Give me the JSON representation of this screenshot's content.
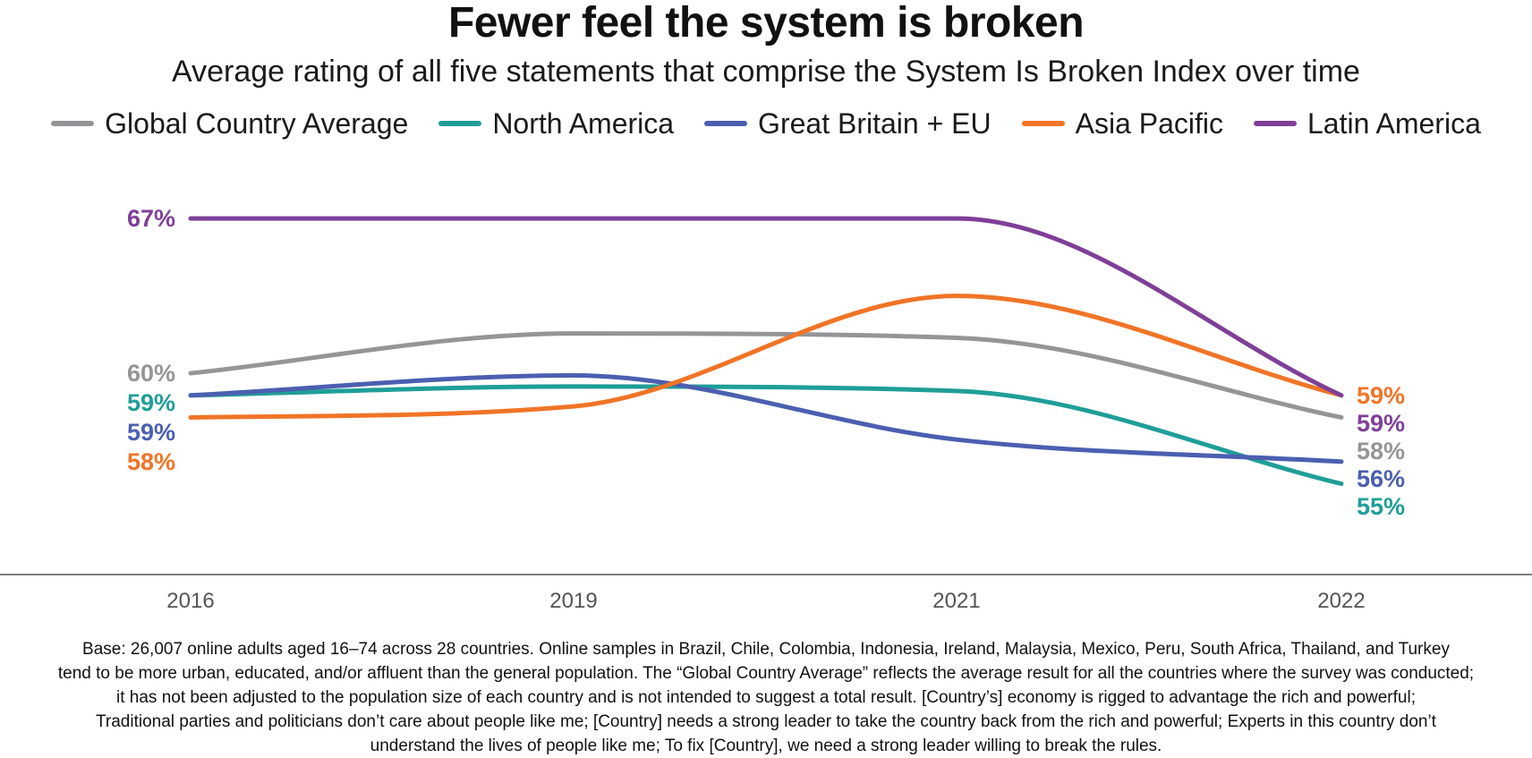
{
  "title": "Fewer feel the system is broken",
  "subtitle": "Average rating of all five statements that comprise the System Is Broken Index over time",
  "chart_data": {
    "type": "line",
    "title": "Fewer feel the system is broken",
    "subtitle": "Average rating of all five statements that comprise the System Is Broken Index over time",
    "categories": [
      "2016",
      "2019",
      "2021",
      "2022"
    ],
    "xlabel": "",
    "ylabel": "",
    "ylim": [
      53,
      70
    ],
    "grid": false,
    "legend_position": "top",
    "series": [
      {
        "name": "Global Country Average",
        "color": "#939598",
        "values": [
          60,
          61.8,
          61.6,
          58
        ],
        "start_label": "60%",
        "end_label": "58%"
      },
      {
        "name": "North America",
        "color": "#1f9e98",
        "values": [
          59,
          59.4,
          59.2,
          55
        ],
        "start_label": "59%",
        "end_label": "55%"
      },
      {
        "name": "Great Britain + EU",
        "color": "#4b5fb0",
        "values": [
          59,
          59.9,
          57,
          56
        ],
        "start_label": "59%",
        "end_label": "56%"
      },
      {
        "name": "Asia Pacific",
        "color": "#f07427",
        "values": [
          58,
          58.5,
          63.5,
          59
        ],
        "start_label": "58%",
        "end_label": "59%"
      },
      {
        "name": "Latin America",
        "color": "#7f3f98",
        "values": [
          67,
          67,
          67,
          59
        ],
        "start_label": "67%",
        "end_label": "59%"
      }
    ]
  },
  "footnote": [
    "Base: 26,007 online adults aged 16–74 across 28 countries. Online samples in Brazil, Chile, Colombia, Indonesia, Ireland, Malaysia, Mexico, Peru, South Africa, Thailand, and Turkey",
    "tend to be more urban, educated, and/or affluent than the general population. The “Global Country Average” reflects the average result for all the countries where the survey was conducted;",
    "it has not been adjusted to the population size of each country and is not intended to suggest a total result. [Country’s] economy is rigged to advantage the rich and powerful;",
    "Traditional parties and politicians don’t care about people like me; [Country] needs a strong leader to take the country back from the rich and powerful; Experts in this country don’t",
    "understand the lives of people like me; To fix [Country], we need a strong leader willing to break the rules."
  ]
}
